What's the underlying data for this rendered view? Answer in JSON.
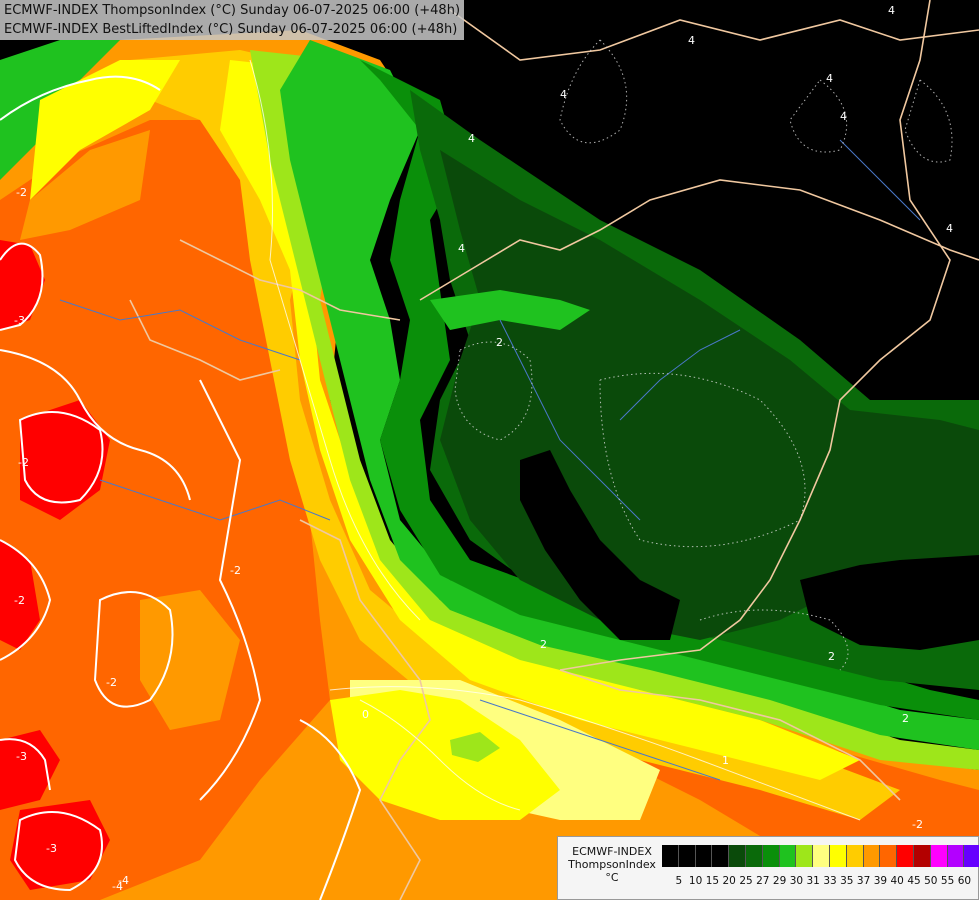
{
  "titles": {
    "line1": "ECMWF-INDEX ThompsonIndex (°C) Sunday 06-07-2025 06:00 (+48h)",
    "line2": "ECMWF-INDEX BestLiftedIndex (°C) Sunday 06-07-2025 06:00 (+48h)"
  },
  "legend": {
    "model": "ECMWF-INDEX",
    "variable": "ThompsonIndex",
    "unit": "°C",
    "colors": [
      "#000000",
      "#000000",
      "#000000",
      "#000000",
      "#0a4a0a",
      "#0a6a0a",
      "#0a8f0a",
      "#1fc21f",
      "#9ee61a",
      "#ffff80",
      "#ffff00",
      "#ffcc00",
      "#ff9900",
      "#ff6600",
      "#ff0000",
      "#b30000",
      "#ff00ff",
      "#b300ff",
      "#6600ff",
      "#0000ff"
    ],
    "ticks": [
      "5",
      "10",
      "15",
      "20",
      "25",
      "27",
      "29",
      "30",
      "31",
      "33",
      "35",
      "37",
      "39",
      "40",
      "45",
      "50",
      "55",
      "60"
    ]
  },
  "contour_labels": [
    "-3",
    "-3",
    "-2",
    "-2",
    "-2",
    "-3",
    "-2",
    "-4",
    "-2",
    "2",
    "2",
    "2",
    "-2",
    "0",
    "1",
    "-4",
    "4",
    "4",
    "4",
    "4",
    "4",
    "4",
    "4",
    "4",
    "2"
  ],
  "map_colors": {
    "ocean_black": "#000000",
    "dark_green": "#0a4a0a",
    "mid_green": "#0a6a0a",
    "green": "#0a8f0a",
    "bright_green": "#1fc21f",
    "lime": "#9ee61a",
    "pale_yellow": "#ffff80",
    "yellow": "#ffff00",
    "gold": "#ffcc00",
    "orange": "#ff9900",
    "dark_orange": "#ff6600",
    "red": "#ff0000",
    "border": "#f0c8a0",
    "river": "#4a78c8"
  }
}
